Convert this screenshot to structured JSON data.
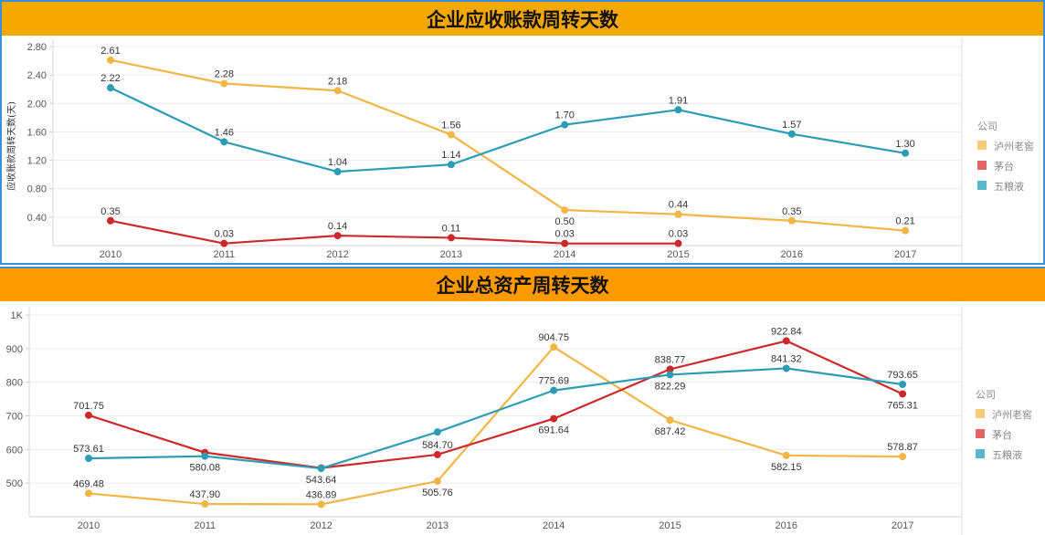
{
  "chart_data": [
    {
      "type": "line",
      "title": "企业应收账款周转天数",
      "xlabel": "",
      "ylabel": "应收账款周转天数(天)",
      "categories": [
        "2010",
        "2011",
        "2012",
        "2013",
        "2014",
        "2015",
        "2016",
        "2017"
      ],
      "ylim": [
        0.0,
        2.9
      ],
      "yticks": [
        0.4,
        0.8,
        1.2,
        1.6,
        2.0,
        2.4,
        2.8
      ],
      "ytick_labels": [
        "0.40",
        "0.80",
        "1.20",
        "1.60",
        "2.00",
        "2.40",
        "2.80"
      ],
      "grid": true,
      "legend": {
        "title": "公司",
        "position": "right"
      },
      "series": [
        {
          "name": "泸州老窖",
          "color": "#f0b646",
          "legend_color": "#f5cc7a",
          "values": [
            2.61,
            2.28,
            2.18,
            1.56,
            0.5,
            0.44,
            0.35,
            0.21
          ],
          "labels": [
            "2.61",
            "2.28",
            "2.18",
            "1.56",
            "0.50",
            "0.44",
            "0.35",
            "0.21"
          ],
          "label_pos": [
            "above",
            "above",
            "above",
            "above",
            "below",
            "above",
            "above",
            "above"
          ]
        },
        {
          "name": "茅台",
          "color": "#cc2a2a",
          "legend_color": "#e06666",
          "values": [
            0.35,
            0.03,
            0.14,
            0.11,
            0.03,
            0.03,
            null,
            null
          ],
          "labels": [
            "0.35",
            "0.03",
            "0.14",
            "0.11",
            "0.03",
            "0.03",
            null,
            null
          ],
          "label_pos": [
            "above",
            "above",
            "above",
            "above",
            "above",
            "above",
            "above",
            "above"
          ]
        },
        {
          "name": "五粮液",
          "color": "#2a9db5",
          "legend_color": "#5ab8cc",
          "values": [
            2.22,
            1.46,
            1.04,
            1.14,
            1.7,
            1.91,
            1.57,
            1.3
          ],
          "labels": [
            "2.22",
            "1.46",
            "1.04",
            "1.14",
            "1.70",
            "1.91",
            "1.57",
            "1.30"
          ],
          "label_pos": [
            "above",
            "above",
            "above",
            "above",
            "above",
            "above",
            "above",
            "above"
          ]
        }
      ]
    },
    {
      "type": "line",
      "title": "企业总资产周转天数",
      "xlabel": "",
      "ylabel": "",
      "categories": [
        "2010",
        "2011",
        "2012",
        "2013",
        "2014",
        "2015",
        "2016",
        "2017"
      ],
      "ylim": [
        400,
        1000
      ],
      "yticks": [
        500,
        600,
        700,
        800,
        900,
        1000
      ],
      "ytick_labels": [
        "500",
        "600",
        "700",
        "800",
        "900",
        "1K"
      ],
      "grid": true,
      "legend": {
        "title": "公司",
        "position": "right"
      },
      "series": [
        {
          "name": "泸州老窖",
          "color": "#f0b646",
          "legend_color": "#f5cc7a",
          "values": [
            469.48,
            437.9,
            436.89,
            505.76,
            904.75,
            687.42,
            582.15,
            578.87
          ],
          "labels": [
            "469.48",
            "437.90",
            "436.89",
            "505.76",
            "904.75",
            "687.42",
            "582.15",
            "578.87"
          ],
          "label_pos": [
            "above",
            "above",
            "above",
            "below",
            "above",
            "below",
            "below",
            "above"
          ]
        },
        {
          "name": "茅台",
          "color": "#cc2a2a",
          "legend_color": "#e06666",
          "values": [
            701.75,
            591.0,
            545.0,
            584.7,
            691.64,
            838.77,
            922.84,
            765.31
          ],
          "labels": [
            "701.75",
            null,
            null,
            "584.70",
            "691.64",
            "838.77",
            "922.84",
            "765.31"
          ],
          "label_pos": [
            "above",
            "above",
            "above",
            "above",
            "below",
            "above",
            "above",
            "below"
          ]
        },
        {
          "name": "五粮液",
          "color": "#2a9db5",
          "legend_color": "#5ab8cc",
          "values": [
            573.61,
            580.08,
            543.64,
            652.0,
            775.69,
            822.29,
            841.32,
            793.65
          ],
          "labels": [
            "573.61",
            "580.08",
            "543.64",
            null,
            "775.69",
            "822.29",
            "841.32",
            "793.65"
          ],
          "label_pos": [
            "above",
            "below",
            "below",
            "above",
            "above",
            "below",
            "above",
            "above"
          ]
        }
      ]
    }
  ]
}
